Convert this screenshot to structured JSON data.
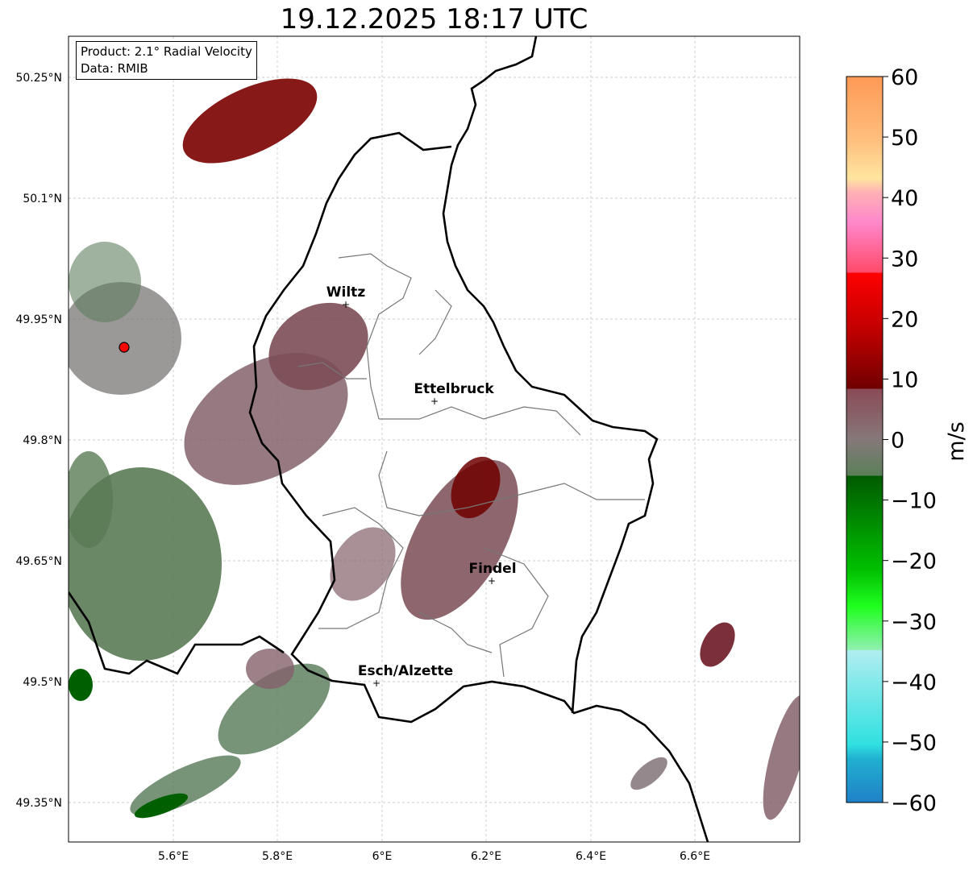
{
  "title": "19.12.2025 18:17 UTC",
  "info": {
    "product": "Product: 2.1° Radial Velocity",
    "data": "Data: RMIB"
  },
  "axes": {
    "x_ticks": [
      "5.6°E",
      "5.8°E",
      "6°E",
      "6.2°E",
      "6.4°E",
      "6.6°E"
    ],
    "y_ticks": [
      "50.25°N",
      "50.1°N",
      "49.95°N",
      "49.8°N",
      "49.65°N",
      "49.5°N",
      "49.35°N"
    ]
  },
  "cities": [
    {
      "name": "Wiltz"
    },
    {
      "name": "Ettelbruck"
    },
    {
      "name": "Findel"
    },
    {
      "name": "Esch/Alzette"
    }
  ],
  "colorbar": {
    "unit": "m/s",
    "ticks": [
      "60",
      "50",
      "40",
      "30",
      "20",
      "10",
      "0",
      "−10",
      "−20",
      "−30",
      "−40",
      "−50",
      "−60"
    ],
    "colors": [
      "#ff9955",
      "#ffc07f",
      "#ffe59f",
      "#ffb0b5",
      "#ff88cc",
      "#ff5a7a",
      "#ff0000",
      "#c80000",
      "#780000",
      "#8a4a55",
      "#86707a",
      "#5f8060",
      "#006000",
      "#00a000",
      "#00f000",
      "#60f070",
      "#b0f0f0",
      "#40e0e0",
      "#2080c8"
    ]
  },
  "radar_site": {
    "color": "#ff0000"
  }
}
